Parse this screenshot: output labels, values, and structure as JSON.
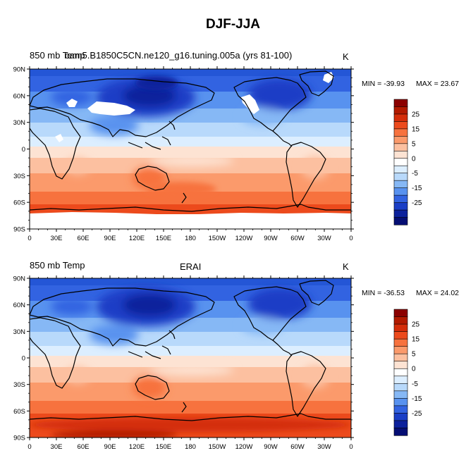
{
  "title": "DJF-JJA",
  "panels": [
    {
      "left_label": "850 mb Temp",
      "center_label": "cam5.B1850C5CN.ne120_g16.tuning.005a (yrs 81-100)",
      "units": "K",
      "min_label": "MIN = -39.93",
      "max_label": "MAX =  23.67"
    },
    {
      "left_label": "850 mb Temp",
      "center_label": "ERAI",
      "units": "K",
      "min_label": "MIN = -36.53",
      "max_label": "MAX = 24.02"
    }
  ],
  "lat_ticks": [
    "90N",
    "60N",
    "30N",
    "0",
    "30S",
    "60S",
    "90S"
  ],
  "lon_ticks": [
    "0",
    "30E",
    "60E",
    "90E",
    "120E",
    "150E",
    "180",
    "150W",
    "120W",
    "90W",
    "60W",
    "30W",
    "0"
  ],
  "colorbar": {
    "labels": [
      "25",
      "15",
      "5",
      "0",
      "-5",
      "-15",
      "-25"
    ],
    "colors": [
      "#8b0000",
      "#b21a00",
      "#d42d0a",
      "#ec4a1c",
      "#f7723e",
      "#fb9a6b",
      "#fcc0a0",
      "#fde3d3",
      "#ffffff",
      "#dceeff",
      "#b8d9fb",
      "#86b8f5",
      "#5892ef",
      "#3263e1",
      "#1a3ec6",
      "#0c219c",
      "#050e73"
    ]
  }
}
